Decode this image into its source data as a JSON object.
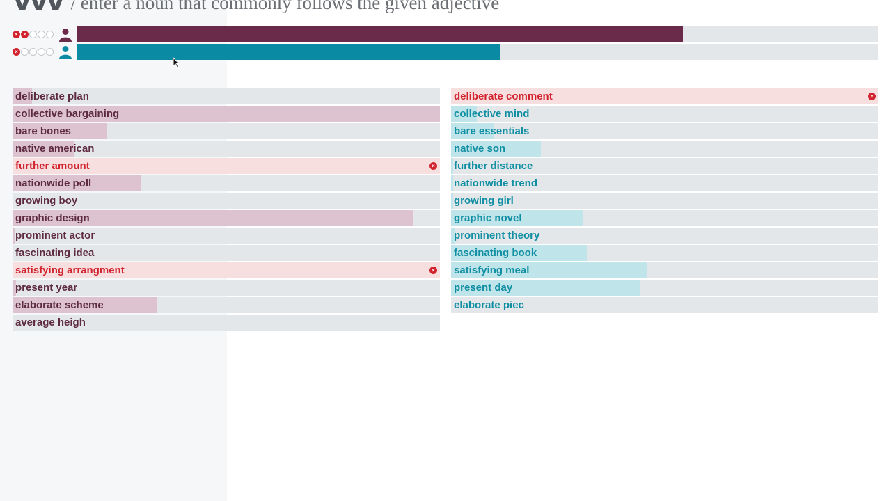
{
  "header": {
    "logo": "VVV",
    "instruction": "/ enter a noun that commonly follows the given adjective"
  },
  "players": [
    {
      "name": "player-1",
      "color": "#6a2a4a",
      "lives": [
        "lost",
        "lost",
        "left",
        "left",
        "left"
      ],
      "progress": 0.756
    },
    {
      "name": "player-2",
      "color": "#0b8aa3",
      "lives": [
        "lost",
        "left",
        "left",
        "left",
        "left"
      ],
      "progress": 0.528
    }
  ],
  "icons": {
    "life_lost": "x-circle-icon",
    "life_left": "empty-circle-icon",
    "avatar": "user-icon",
    "wrong": "x-circle-icon",
    "cursor": "mouse-cursor-icon"
  },
  "colors": {
    "wrong": "#d1242f",
    "player1": "#6a2a4a",
    "player2": "#0b8aa3",
    "track": "#e4e7ea"
  },
  "left_answers": [
    {
      "text": "deliberate plan",
      "score": 0.045,
      "wrong": false
    },
    {
      "text": "collective bargaining",
      "score": 1.0,
      "wrong": false
    },
    {
      "text": "bare bones",
      "score": 0.22,
      "wrong": false
    },
    {
      "text": "native american",
      "score": 0.145,
      "wrong": false
    },
    {
      "text": "further amount",
      "score": 0,
      "wrong": true
    },
    {
      "text": "nationwide poll",
      "score": 0.3,
      "wrong": false
    },
    {
      "text": "growing boy",
      "score": 0,
      "wrong": false
    },
    {
      "text": "graphic design",
      "score": 0.937,
      "wrong": false
    },
    {
      "text": "prominent actor",
      "score": 0.006,
      "wrong": false
    },
    {
      "text": "fascinating idea",
      "score": 0,
      "wrong": false
    },
    {
      "text": "satisfying arrangment",
      "score": 0,
      "wrong": true
    },
    {
      "text": "present year",
      "score": 0.008,
      "wrong": false
    },
    {
      "text": "elaborate scheme",
      "score": 0.338,
      "wrong": false
    },
    {
      "text": "average heigh",
      "score": 0,
      "wrong": false
    }
  ],
  "right_answers": [
    {
      "text": "deliberate comment",
      "score": 0,
      "wrong": true
    },
    {
      "text": "collective mind",
      "score": 0.06,
      "wrong": false
    },
    {
      "text": "bare essentials",
      "score": 0.1,
      "wrong": false
    },
    {
      "text": "native son",
      "score": 0.21,
      "wrong": false
    },
    {
      "text": "further distance",
      "score": 0.005,
      "wrong": false
    },
    {
      "text": "nationwide trend",
      "score": 0.005,
      "wrong": false
    },
    {
      "text": "growing girl",
      "score": 0.005,
      "wrong": false
    },
    {
      "text": "graphic novel",
      "score": 0.31,
      "wrong": false
    },
    {
      "text": "prominent theory",
      "score": 0.008,
      "wrong": false
    },
    {
      "text": "fascinating book",
      "score": 0.317,
      "wrong": false
    },
    {
      "text": "satisfying meal",
      "score": 0.457,
      "wrong": false
    },
    {
      "text": "present day",
      "score": 0.442,
      "wrong": false
    },
    {
      "text": "elaborate piec",
      "score": 0,
      "wrong": false
    }
  ]
}
